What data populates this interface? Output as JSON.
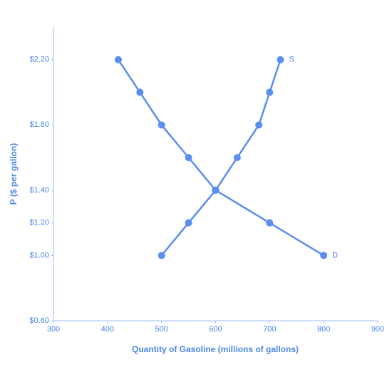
{
  "chart_data": {
    "type": "line",
    "x_label": "Quantity of Gasoline (millions of gallons)",
    "y_label": "P ($ per gallon)",
    "xlim": [
      300,
      900
    ],
    "xticks": [
      300,
      400,
      500,
      600,
      700,
      800,
      900
    ],
    "ylim": [
      0.6,
      2.4
    ],
    "yticks": [
      {
        "value": 0.6,
        "label": "$0.60"
      },
      {
        "value": 1.0,
        "label": "$1.00"
      },
      {
        "value": 1.2,
        "label": "$1.20"
      },
      {
        "value": 1.4,
        "label": "$1.40"
      },
      {
        "value": 1.8,
        "label": "$1.80"
      },
      {
        "value": 2.2,
        "label": "$2.20"
      }
    ],
    "series": [
      {
        "name": "D",
        "color": "#5b8def",
        "x": [
          420,
          460,
          500,
          550,
          600,
          700,
          800
        ],
        "values": [
          2.2,
          2.0,
          1.8,
          1.6,
          1.4,
          1.2,
          1.0
        ]
      },
      {
        "name": "S",
        "color": "#5b8def",
        "x": [
          500,
          550,
          600,
          640,
          680,
          700,
          720
        ],
        "values": [
          1.0,
          1.2,
          1.4,
          1.6,
          1.8,
          2.0,
          2.2
        ]
      }
    ]
  }
}
